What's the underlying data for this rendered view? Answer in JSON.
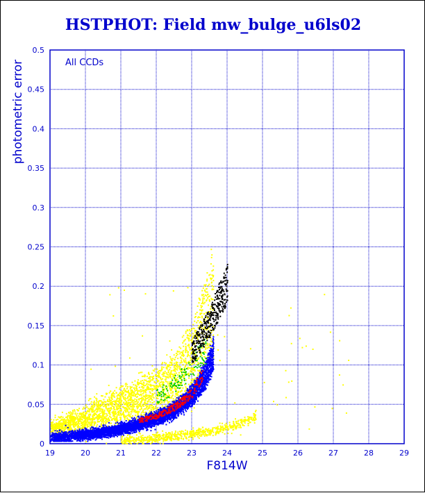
{
  "chart_data": {
    "type": "scatter",
    "title": "HSTPHOT: Field mw_bulge_u6ls02",
    "xlabel": "F814W",
    "ylabel": "photometric error",
    "annotation": "All CCDs",
    "xlim": [
      19,
      29
    ],
    "ylim": [
      0,
      0.5
    ],
    "x_ticks": [
      "19",
      "20",
      "21",
      "22",
      "23",
      "24",
      "25",
      "26",
      "27",
      "28",
      "29"
    ],
    "y_ticks": [
      "0",
      "0.05",
      "0.1",
      "0.15",
      "0.2",
      "0.25",
      "0.3",
      "0.35",
      "0.4",
      "0.45",
      "0.5"
    ],
    "grid": true,
    "series": [
      {
        "color": "#0000ff",
        "description_points": [
          [
            19.0,
            0.008
          ],
          [
            19.5,
            0.01
          ],
          [
            20.0,
            0.012
          ],
          [
            20.5,
            0.015
          ],
          [
            21.0,
            0.019
          ],
          [
            21.5,
            0.025
          ],
          [
            22.0,
            0.032
          ],
          [
            22.5,
            0.043
          ],
          [
            23.0,
            0.06
          ],
          [
            23.3,
            0.08
          ],
          [
            23.6,
            0.11
          ]
        ]
      },
      {
        "color": "#ffff00",
        "description_points": [
          [
            19.0,
            0.02
          ],
          [
            19.5,
            0.028
          ],
          [
            20.0,
            0.035
          ],
          [
            20.5,
            0.045
          ],
          [
            21.0,
            0.055
          ],
          [
            21.5,
            0.065
          ],
          [
            22.0,
            0.075
          ],
          [
            22.5,
            0.09
          ],
          [
            23.0,
            0.12
          ],
          [
            23.3,
            0.16
          ],
          [
            23.6,
            0.2
          ],
          [
            21.0,
            0.005
          ],
          [
            22.0,
            0.008
          ],
          [
            23.0,
            0.013
          ],
          [
            24.0,
            0.02
          ],
          [
            24.8,
            0.035
          ]
        ]
      },
      {
        "color": "#ff0000",
        "description_points": [
          [
            21.5,
            0.03
          ],
          [
            22.0,
            0.036
          ],
          [
            22.5,
            0.047
          ],
          [
            23.0,
            0.065
          ],
          [
            23.3,
            0.09
          ]
        ]
      },
      {
        "color": "#00cc00",
        "description_points": [
          [
            22.0,
            0.06
          ],
          [
            22.5,
            0.075
          ],
          [
            23.0,
            0.1
          ],
          [
            23.4,
            0.12
          ]
        ]
      },
      {
        "color": "#000000",
        "description_points": [
          [
            23.0,
            0.12
          ],
          [
            23.4,
            0.15
          ],
          [
            23.7,
            0.18
          ],
          [
            23.9,
            0.2
          ],
          [
            24.0,
            0.21
          ]
        ]
      }
    ],
    "colors": {
      "axes": "#0000cc",
      "background": "#ffffff"
    }
  }
}
